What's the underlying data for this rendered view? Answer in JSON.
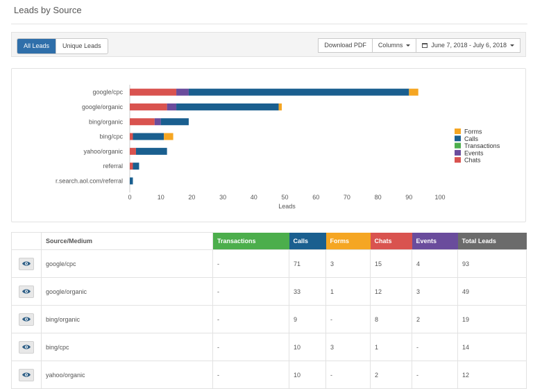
{
  "page": {
    "title": "Leads by Source"
  },
  "toolbar": {
    "all_leads": "All Leads",
    "unique_leads": "Unique Leads",
    "download_pdf": "Download PDF",
    "columns": "Columns",
    "date_range": "June 7, 2018 - July 6, 2018"
  },
  "colors": {
    "Chats": "#d9534f",
    "Events": "#6a4c9c",
    "Transactions": "#4cae4c",
    "Calls": "#1a5f8f",
    "Forms": "#f5a623",
    "source_header": "#ffffff",
    "total_header": "#6b6b6b",
    "active_button": "#2f6faa"
  },
  "chart_data": {
    "type": "bar",
    "orientation": "horizontal",
    "stacked": true,
    "categories": [
      "google/cpc",
      "google/organic",
      "bing/organic",
      "bing/cpc",
      "yahoo/organic",
      "referral",
      "r.search.aol.com/referral"
    ],
    "series": [
      {
        "name": "Chats",
        "values": [
          15,
          12,
          8,
          1,
          2,
          1,
          0
        ]
      },
      {
        "name": "Events",
        "values": [
          4,
          3,
          2,
          0,
          0,
          0,
          0
        ]
      },
      {
        "name": "Transactions",
        "values": [
          0,
          0,
          0,
          0,
          0,
          0,
          0
        ]
      },
      {
        "name": "Calls",
        "values": [
          71,
          33,
          9,
          10,
          10,
          2,
          1
        ]
      },
      {
        "name": "Forms",
        "values": [
          3,
          1,
          0,
          3,
          0,
          0,
          0
        ]
      }
    ],
    "legend_order": [
      "Forms",
      "Calls",
      "Transactions",
      "Events",
      "Chats"
    ],
    "legend_position": "right",
    "xlabel": "Leads",
    "ylabel": "",
    "xlim": [
      0,
      100
    ],
    "xticks": [
      "0",
      "10",
      "20",
      "30",
      "40",
      "50",
      "60",
      "70",
      "80",
      "90",
      "100"
    ],
    "grid": false
  },
  "table": {
    "headers": [
      {
        "key": "source",
        "label": "Source/Medium"
      },
      {
        "key": "transactions",
        "label": "Transactions"
      },
      {
        "key": "calls",
        "label": "Calls"
      },
      {
        "key": "forms",
        "label": "Forms"
      },
      {
        "key": "chats",
        "label": "Chats"
      },
      {
        "key": "events",
        "label": "Events"
      },
      {
        "key": "total",
        "label": "Total Leads"
      }
    ],
    "rows": [
      {
        "source": "google/cpc",
        "transactions": "-",
        "calls": "71",
        "forms": "3",
        "chats": "15",
        "events": "4",
        "total": "93"
      },
      {
        "source": "google/organic",
        "transactions": "-",
        "calls": "33",
        "forms": "1",
        "chats": "12",
        "events": "3",
        "total": "49"
      },
      {
        "source": "bing/organic",
        "transactions": "-",
        "calls": "9",
        "forms": "-",
        "chats": "8",
        "events": "2",
        "total": "19"
      },
      {
        "source": "bing/cpc",
        "transactions": "-",
        "calls": "10",
        "forms": "3",
        "chats": "1",
        "events": "-",
        "total": "14"
      },
      {
        "source": "yahoo/organic",
        "transactions": "-",
        "calls": "10",
        "forms": "-",
        "chats": "2",
        "events": "-",
        "total": "12"
      }
    ]
  }
}
